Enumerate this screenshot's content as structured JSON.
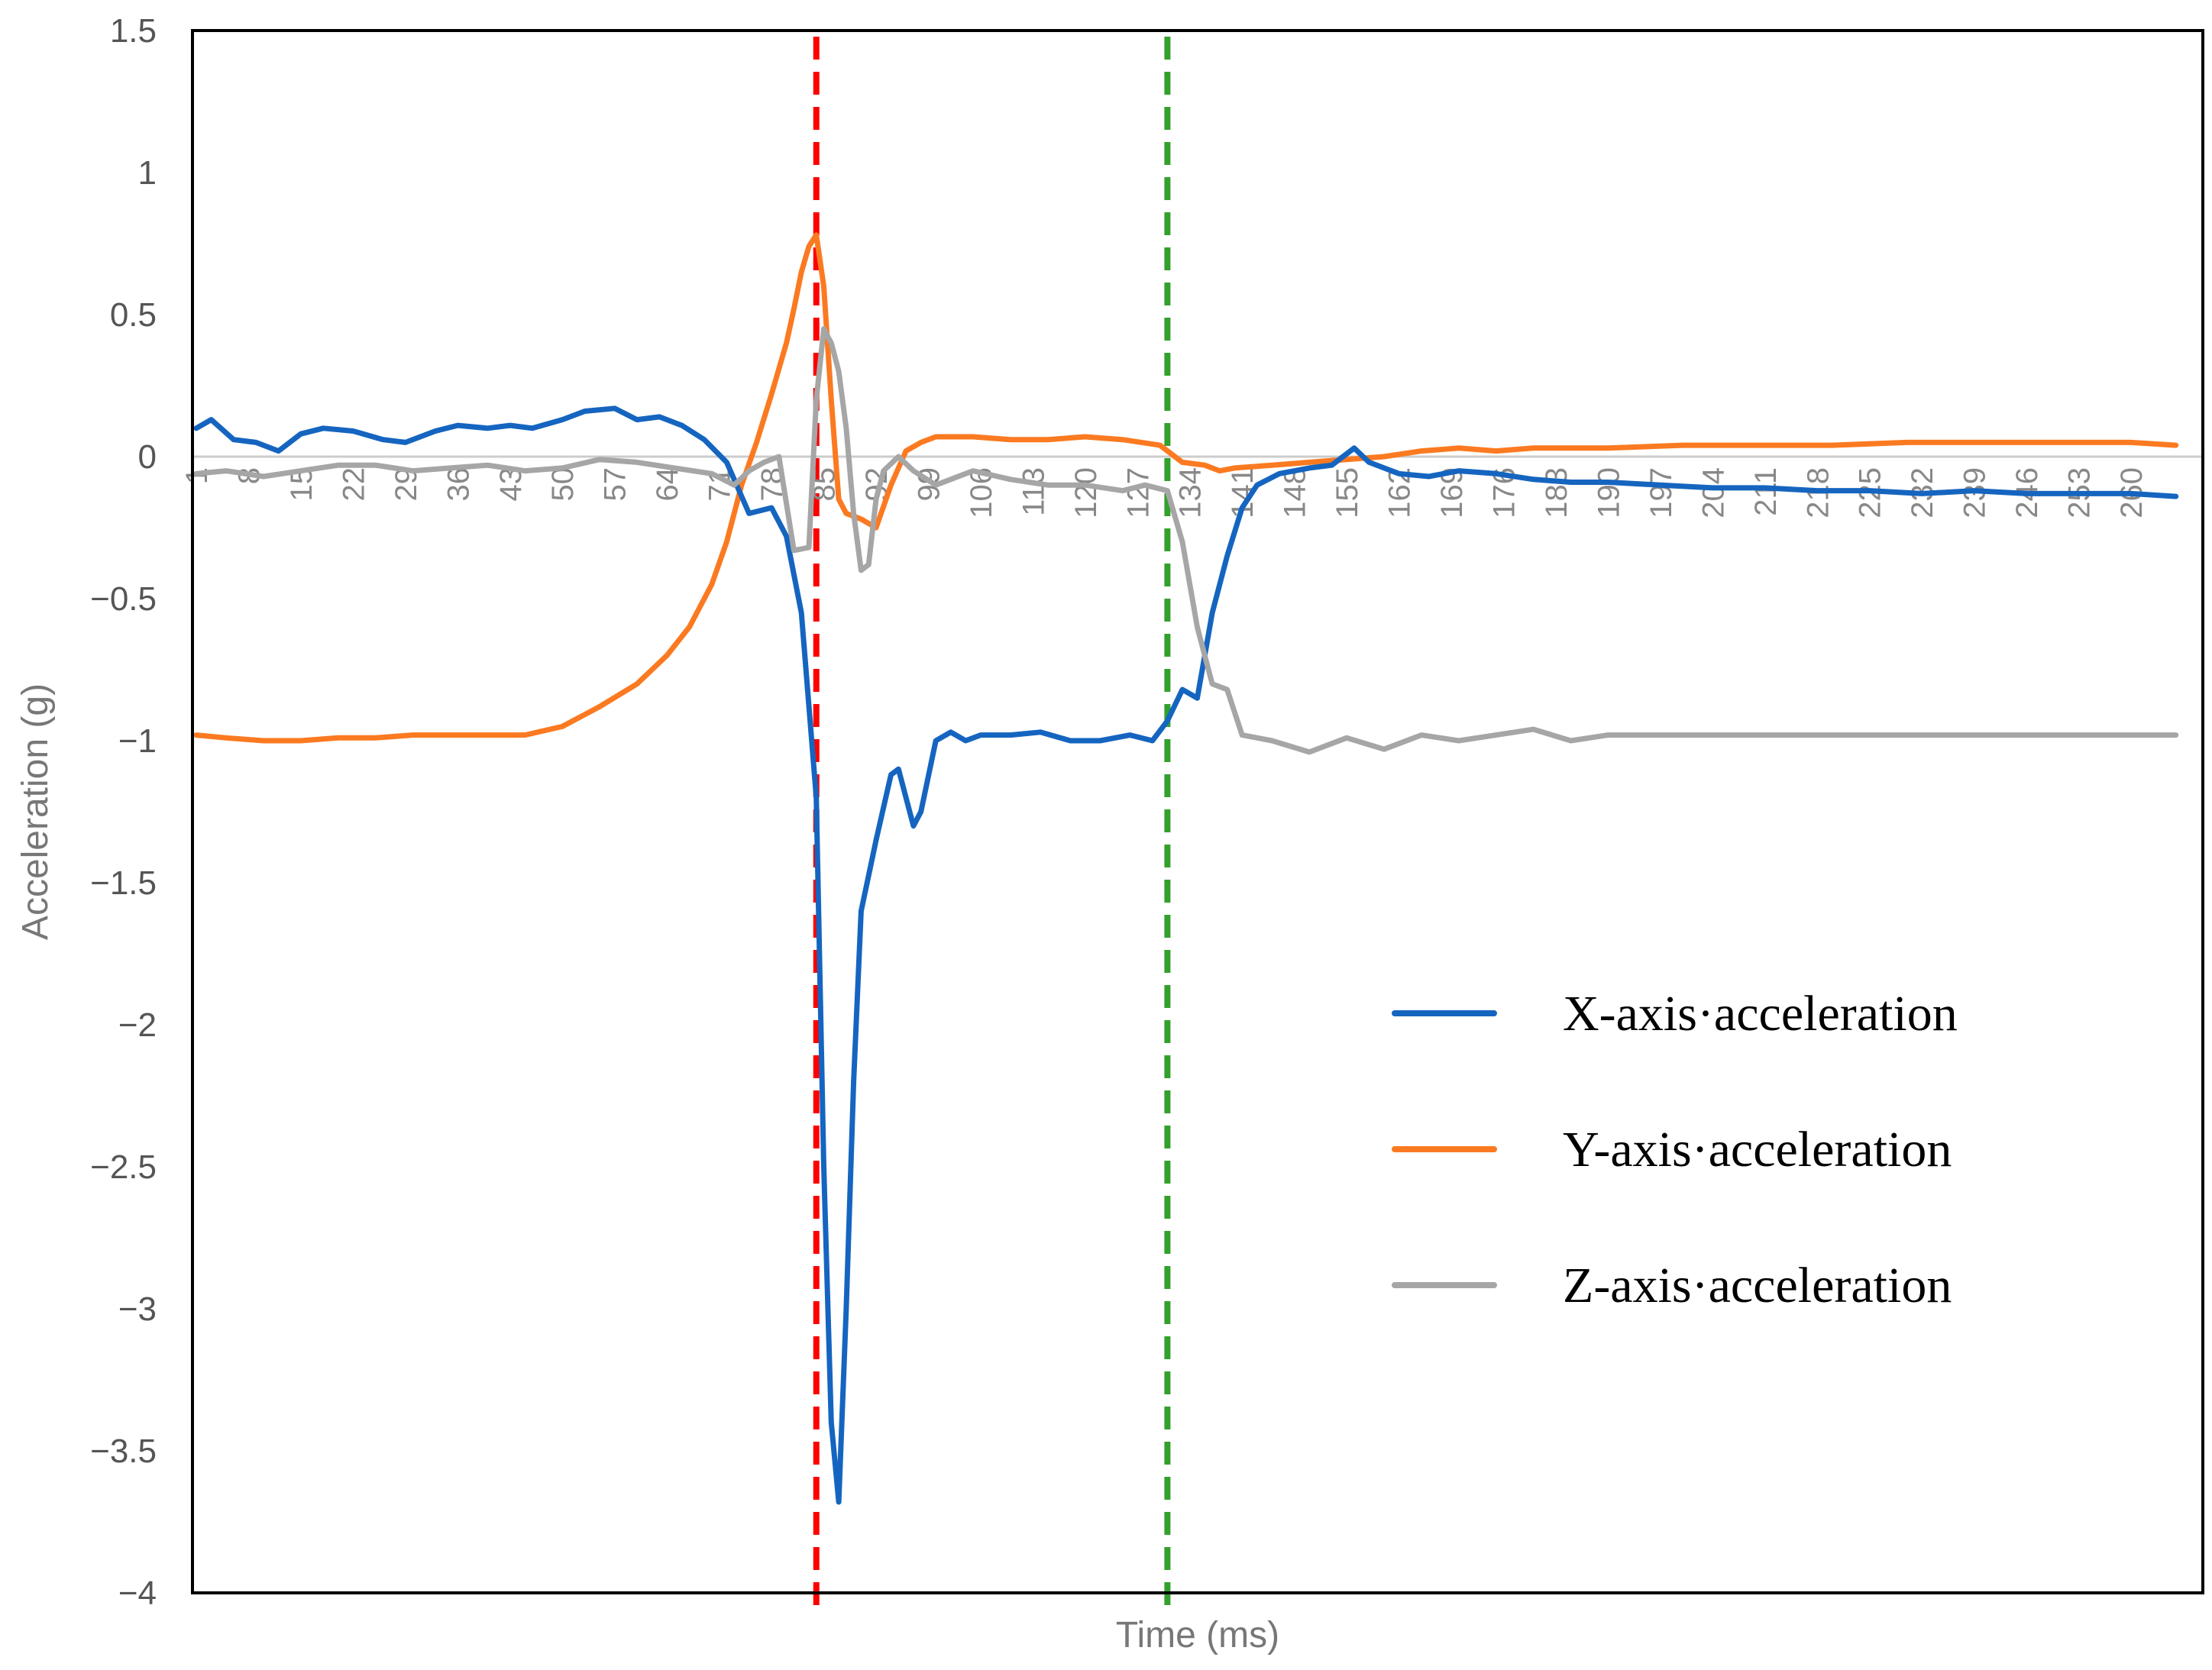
{
  "chart_data": {
    "type": "line",
    "title": "",
    "xlabel": "Time (ms)",
    "ylabel": "Acceleration (g)",
    "ylim": [
      -4,
      1.5
    ],
    "yticks": [
      1.5,
      1,
      0.5,
      0,
      -0.5,
      -1,
      -1.5,
      -2,
      -2.5,
      -3,
      -3.5,
      -4
    ],
    "ytick_labels": [
      "1.5",
      "1",
      "0.5",
      "0",
      "−0.5",
      "−1",
      "−1.5",
      "−2",
      "−2.5",
      "−3",
      "−3.5",
      "−4"
    ],
    "xlim": [
      1,
      266
    ],
    "xticks": [
      1,
      8,
      15,
      22,
      29,
      36,
      43,
      50,
      57,
      64,
      71,
      78,
      85,
      92,
      99,
      106,
      113,
      120,
      127,
      134,
      141,
      148,
      155,
      162,
      169,
      176,
      183,
      190,
      197,
      204,
      211,
      218,
      225,
      232,
      239,
      246,
      253,
      260
    ],
    "grid": false,
    "legend": "bottom-right",
    "reference_lines": [
      {
        "x": 84,
        "color": "#ff0000",
        "style": "dashed"
      },
      {
        "x": 131,
        "color": "#33a02c",
        "style": "dashed"
      }
    ],
    "series": [
      {
        "name": "X-axis·acceleration",
        "color": "#1565c0",
        "points": [
          [
            1,
            0.1
          ],
          [
            3,
            0.13
          ],
          [
            6,
            0.06
          ],
          [
            9,
            0.05
          ],
          [
            12,
            0.02
          ],
          [
            15,
            0.08
          ],
          [
            18,
            0.1
          ],
          [
            22,
            0.09
          ],
          [
            26,
            0.06
          ],
          [
            29,
            0.05
          ],
          [
            33,
            0.09
          ],
          [
            36,
            0.11
          ],
          [
            40,
            0.1
          ],
          [
            43,
            0.11
          ],
          [
            46,
            0.1
          ],
          [
            50,
            0.13
          ],
          [
            53,
            0.16
          ],
          [
            57,
            0.17
          ],
          [
            60,
            0.13
          ],
          [
            63,
            0.14
          ],
          [
            66,
            0.11
          ],
          [
            69,
            0.06
          ],
          [
            72,
            -0.02
          ],
          [
            75,
            -0.2
          ],
          [
            78,
            -0.18
          ],
          [
            80,
            -0.28
          ],
          [
            82,
            -0.55
          ],
          [
            84,
            -1.2
          ],
          [
            85,
            -2.5
          ],
          [
            86,
            -3.4
          ],
          [
            87,
            -3.68
          ],
          [
            88,
            -3.0
          ],
          [
            89,
            -2.2
          ],
          [
            90,
            -1.6
          ],
          [
            92,
            -1.35
          ],
          [
            94,
            -1.12
          ],
          [
            95,
            -1.1
          ],
          [
            97,
            -1.3
          ],
          [
            98,
            -1.25
          ],
          [
            100,
            -1.0
          ],
          [
            102,
            -0.97
          ],
          [
            104,
            -1.0
          ],
          [
            106,
            -0.98
          ],
          [
            110,
            -0.98
          ],
          [
            114,
            -0.97
          ],
          [
            118,
            -1.0
          ],
          [
            122,
            -1.0
          ],
          [
            126,
            -0.98
          ],
          [
            129,
            -1.0
          ],
          [
            131,
            -0.93
          ],
          [
            133,
            -0.82
          ],
          [
            135,
            -0.85
          ],
          [
            137,
            -0.55
          ],
          [
            139,
            -0.35
          ],
          [
            141,
            -0.18
          ],
          [
            143,
            -0.1
          ],
          [
            146,
            -0.06
          ],
          [
            150,
            -0.04
          ],
          [
            153,
            -0.03
          ],
          [
            156,
            0.03
          ],
          [
            158,
            -0.02
          ],
          [
            162,
            -0.06
          ],
          [
            166,
            -0.07
          ],
          [
            170,
            -0.05
          ],
          [
            175,
            -0.06
          ],
          [
            180,
            -0.08
          ],
          [
            185,
            -0.09
          ],
          [
            190,
            -0.09
          ],
          [
            197,
            -0.1
          ],
          [
            204,
            -0.11
          ],
          [
            211,
            -0.11
          ],
          [
            218,
            -0.12
          ],
          [
            225,
            -0.12
          ],
          [
            232,
            -0.13
          ],
          [
            239,
            -0.12
          ],
          [
            246,
            -0.13
          ],
          [
            253,
            -0.13
          ],
          [
            260,
            -0.13
          ],
          [
            266,
            -0.14
          ]
        ]
      },
      {
        "name": "Y-axis·acceleration",
        "color": "#fb7a21",
        "points": [
          [
            1,
            -0.98
          ],
          [
            5,
            -0.99
          ],
          [
            10,
            -1.0
          ],
          [
            15,
            -1.0
          ],
          [
            20,
            -0.99
          ],
          [
            25,
            -0.99
          ],
          [
            30,
            -0.98
          ],
          [
            35,
            -0.98
          ],
          [
            40,
            -0.98
          ],
          [
            45,
            -0.98
          ],
          [
            50,
            -0.95
          ],
          [
            55,
            -0.88
          ],
          [
            60,
            -0.8
          ],
          [
            64,
            -0.7
          ],
          [
            67,
            -0.6
          ],
          [
            70,
            -0.45
          ],
          [
            72,
            -0.3
          ],
          [
            74,
            -0.1
          ],
          [
            76,
            0.05
          ],
          [
            78,
            0.22
          ],
          [
            80,
            0.4
          ],
          [
            81,
            0.52
          ],
          [
            82,
            0.65
          ],
          [
            83,
            0.74
          ],
          [
            84,
            0.78
          ],
          [
            85,
            0.6
          ],
          [
            86,
            0.2
          ],
          [
            87,
            -0.15
          ],
          [
            88,
            -0.2
          ],
          [
            90,
            -0.22
          ],
          [
            92,
            -0.25
          ],
          [
            94,
            -0.1
          ],
          [
            96,
            0.02
          ],
          [
            98,
            0.05
          ],
          [
            100,
            0.07
          ],
          [
            105,
            0.07
          ],
          [
            110,
            0.06
          ],
          [
            115,
            0.06
          ],
          [
            120,
            0.07
          ],
          [
            125,
            0.06
          ],
          [
            130,
            0.04
          ],
          [
            133,
            -0.02
          ],
          [
            136,
            -0.03
          ],
          [
            138,
            -0.05
          ],
          [
            140,
            -0.04
          ],
          [
            145,
            -0.03
          ],
          [
            150,
            -0.02
          ],
          [
            155,
            -0.01
          ],
          [
            160,
            0.0
          ],
          [
            165,
            0.02
          ],
          [
            170,
            0.03
          ],
          [
            175,
            0.02
          ],
          [
            180,
            0.03
          ],
          [
            190,
            0.03
          ],
          [
            200,
            0.04
          ],
          [
            210,
            0.04
          ],
          [
            220,
            0.04
          ],
          [
            230,
            0.05
          ],
          [
            240,
            0.05
          ],
          [
            250,
            0.05
          ],
          [
            260,
            0.05
          ],
          [
            266,
            0.04
          ]
        ]
      },
      {
        "name": "Z-axis·acceleration",
        "color": "#a6a6a6",
        "points": [
          [
            1,
            -0.06
          ],
          [
            5,
            -0.05
          ],
          [
            10,
            -0.07
          ],
          [
            15,
            -0.05
          ],
          [
            20,
            -0.03
          ],
          [
            25,
            -0.03
          ],
          [
            30,
            -0.05
          ],
          [
            35,
            -0.04
          ],
          [
            40,
            -0.03
          ],
          [
            45,
            -0.05
          ],
          [
            50,
            -0.04
          ],
          [
            55,
            -0.01
          ],
          [
            60,
            -0.02
          ],
          [
            65,
            -0.04
          ],
          [
            70,
            -0.06
          ],
          [
            73,
            -0.1
          ],
          [
            75,
            -0.05
          ],
          [
            77,
            -0.02
          ],
          [
            79,
            0.0
          ],
          [
            81,
            -0.33
          ],
          [
            83,
            -0.32
          ],
          [
            84,
            0.2
          ],
          [
            85,
            0.45
          ],
          [
            86,
            0.4
          ],
          [
            87,
            0.3
          ],
          [
            88,
            0.1
          ],
          [
            89,
            -0.2
          ],
          [
            90,
            -0.4
          ],
          [
            91,
            -0.38
          ],
          [
            92,
            -0.15
          ],
          [
            93,
            -0.05
          ],
          [
            95,
            0.0
          ],
          [
            97,
            -0.05
          ],
          [
            100,
            -0.1
          ],
          [
            105,
            -0.05
          ],
          [
            110,
            -0.08
          ],
          [
            115,
            -0.1
          ],
          [
            120,
            -0.1
          ],
          [
            125,
            -0.12
          ],
          [
            128,
            -0.1
          ],
          [
            131,
            -0.12
          ],
          [
            133,
            -0.3
          ],
          [
            135,
            -0.6
          ],
          [
            137,
            -0.8
          ],
          [
            139,
            -0.82
          ],
          [
            141,
            -0.98
          ],
          [
            145,
            -1.0
          ],
          [
            150,
            -1.04
          ],
          [
            155,
            -0.99
          ],
          [
            160,
            -1.03
          ],
          [
            165,
            -0.98
          ],
          [
            170,
            -1.0
          ],
          [
            175,
            -0.98
          ],
          [
            180,
            -0.96
          ],
          [
            185,
            -1.0
          ],
          [
            190,
            -0.98
          ],
          [
            200,
            -0.98
          ],
          [
            210,
            -0.98
          ],
          [
            220,
            -0.98
          ],
          [
            230,
            -0.98
          ],
          [
            240,
            -0.98
          ],
          [
            250,
            -0.98
          ],
          [
            260,
            -0.98
          ],
          [
            266,
            -0.98
          ]
        ]
      }
    ]
  }
}
